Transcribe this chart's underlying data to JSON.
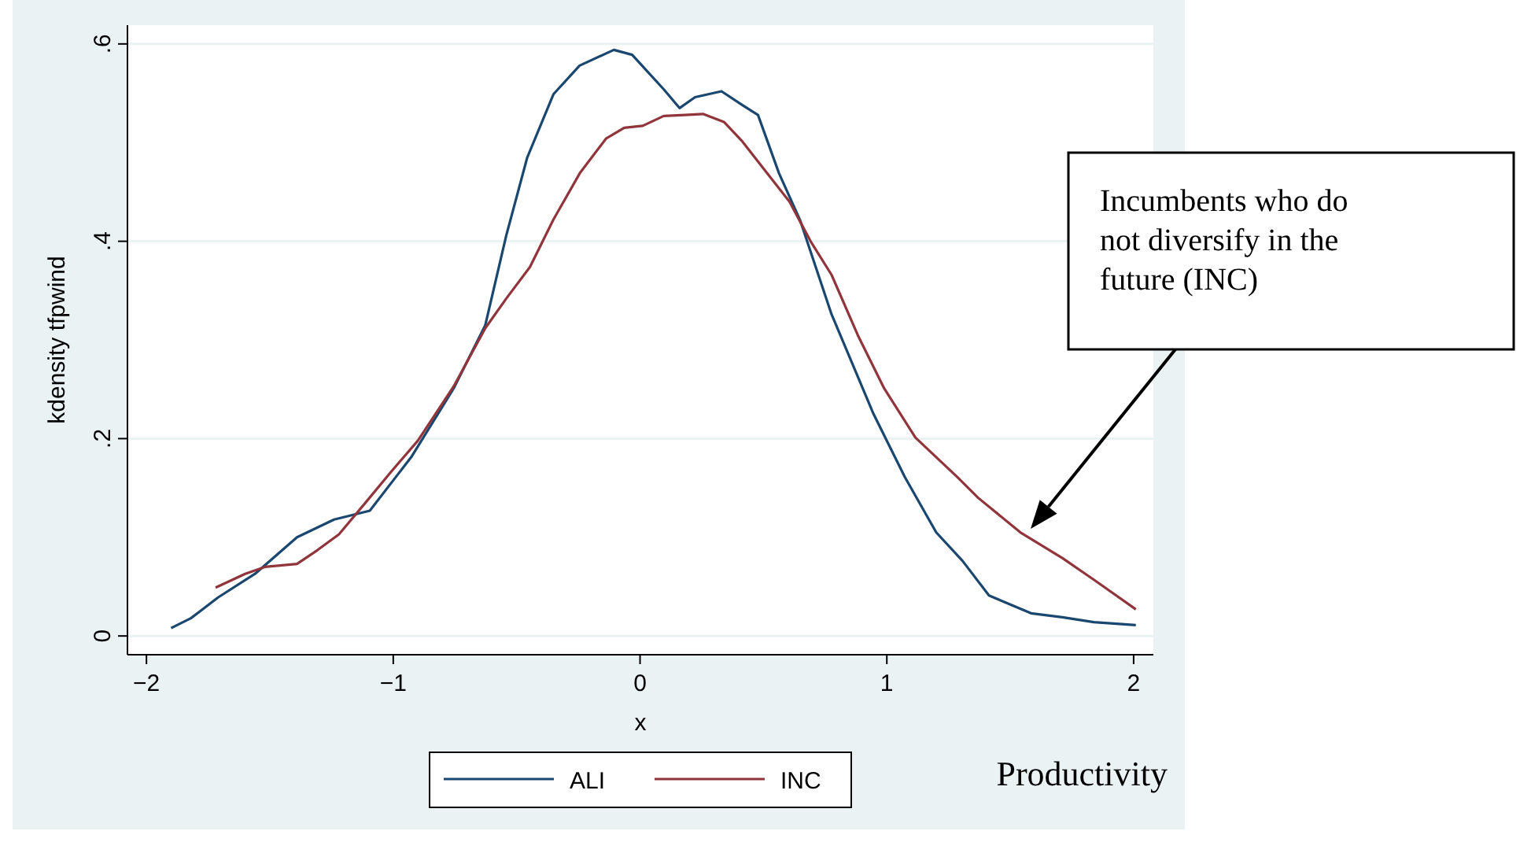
{
  "chart_data": {
    "type": "line",
    "xlabel": "x",
    "ylabel": "kdensity tfpwind",
    "xlim": [
      -2.077,
      2.08
    ],
    "ylim": [
      -0.019,
      0.619
    ],
    "xticks": [
      {
        "value": -2,
        "label": "−2"
      },
      {
        "value": -1,
        "label": "−1"
      },
      0,
      1,
      2
    ],
    "yticks": [
      0,
      {
        "value": 0.2,
        "label": ".2"
      },
      {
        "value": 0.4,
        "label": ".4"
      },
      {
        "value": 0.6,
        "label": ".6"
      }
    ],
    "grid": "y",
    "legend": "bottom",
    "line_style": "solid",
    "marker": "none",
    "series": [
      {
        "name": "ALI",
        "color": "#1a476f",
        "x": [
          -1.9,
          -1.82,
          -1.71,
          -1.56,
          -1.39,
          -1.24,
          -1.095,
          -0.925,
          -0.755,
          -0.627,
          -0.542,
          -0.457,
          -0.351,
          -0.245,
          -0.106,
          -0.032,
          0.096,
          0.16,
          0.223,
          0.33,
          0.415,
          0.478,
          0.563,
          0.649,
          0.776,
          0.946,
          1.073,
          1.2,
          1.307,
          1.414,
          1.584,
          1.711,
          1.839,
          2.009
        ],
        "values": [
          0.008,
          0.018,
          0.039,
          0.063,
          0.1,
          0.118,
          0.127,
          0.182,
          0.251,
          0.315,
          0.406,
          0.485,
          0.549,
          0.578,
          0.594,
          0.589,
          0.554,
          0.535,
          0.546,
          0.552,
          0.538,
          0.528,
          0.469,
          0.421,
          0.326,
          0.225,
          0.161,
          0.105,
          0.076,
          0.041,
          0.023,
          0.019,
          0.014,
          0.011
        ]
      },
      {
        "name": "INC",
        "color": "#90353b",
        "x": [
          -1.72,
          -1.6,
          -1.52,
          -1.39,
          -1.307,
          -1.22,
          -1.116,
          -1.01,
          -0.9,
          -0.755,
          -0.627,
          -0.542,
          -0.446,
          -0.351,
          -0.244,
          -0.138,
          -0.064,
          0.011,
          0.096,
          0.18,
          0.255,
          0.34,
          0.415,
          0.521,
          0.606,
          0.691,
          0.776,
          0.882,
          0.989,
          1.116,
          1.286,
          1.37,
          1.541,
          1.711,
          1.839,
          2.009
        ],
        "values": [
          0.049,
          0.063,
          0.07,
          0.073,
          0.087,
          0.103,
          0.134,
          0.166,
          0.198,
          0.253,
          0.312,
          0.342,
          0.374,
          0.422,
          0.469,
          0.504,
          0.515,
          0.517,
          0.527,
          0.528,
          0.529,
          0.521,
          0.501,
          0.467,
          0.44,
          0.4,
          0.366,
          0.305,
          0.251,
          0.201,
          0.161,
          0.14,
          0.105,
          0.079,
          0.057,
          0.027
        ]
      }
    ],
    "annotations": [
      "Productivity",
      "Incumbents who do not diversify in the future (INC)"
    ]
  }
}
